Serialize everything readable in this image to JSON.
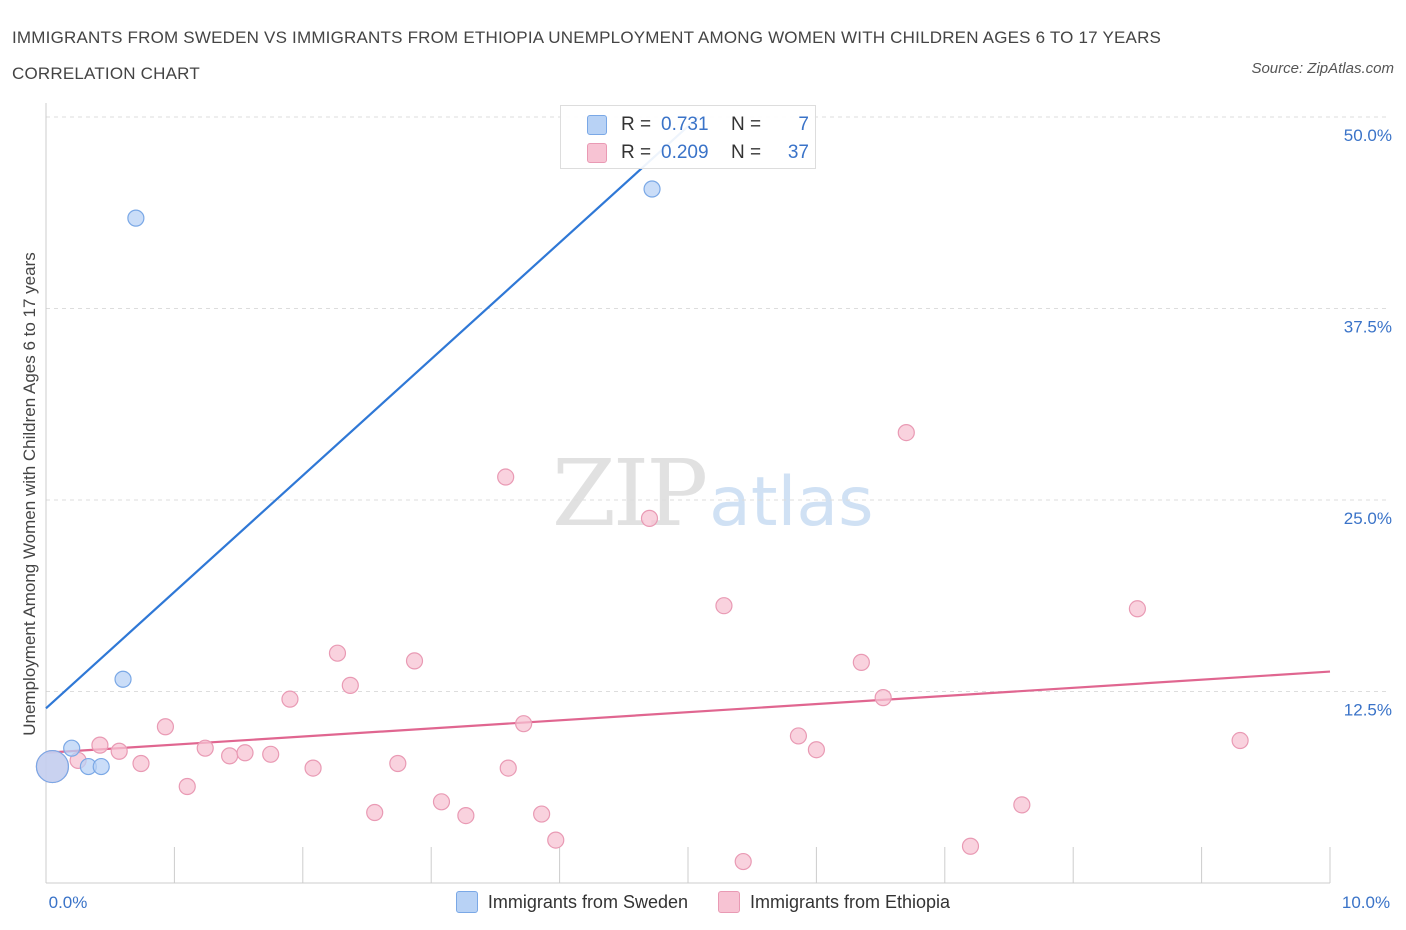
{
  "title": "IMMIGRANTS FROM SWEDEN VS IMMIGRANTS FROM ETHIOPIA UNEMPLOYMENT AMONG WOMEN WITH CHILDREN AGES 6 TO 17 YEARS CORRELATION CHART",
  "source": "Source: ZipAtlas.com",
  "watermark": {
    "zip": "ZIP",
    "atlas": "atlas"
  },
  "stats": [
    {
      "r_label": "R =",
      "r_value": "0.731",
      "n_label": "N =",
      "n_value": "7"
    },
    {
      "r_label": "R =",
      "r_value": "0.209",
      "n_label": "N =",
      "n_value": "37"
    }
  ],
  "legend": [
    {
      "label": "Immigrants from Sweden"
    },
    {
      "label": "Immigrants from Ethiopia"
    }
  ],
  "colors": {
    "sweden_fill": "#b8d2f5",
    "sweden_stroke": "#7aa8e6",
    "sweden_line": "#2f78d6",
    "ethiopia_fill": "#f7c3d3",
    "ethiopia_stroke": "#e99ab4",
    "ethiopia_line": "#e06690",
    "grid": "#dddddd",
    "axis_label": "#3a73c8"
  },
  "chart_data": {
    "type": "scatter",
    "xlabel": "",
    "ylabel": "Unemployment Among Women with Children Ages 6 to 17 years",
    "xlim": [
      0,
      10
    ],
    "ylim": [
      0,
      50
    ],
    "x_tick_labels": [
      "0.0%",
      "10.0%"
    ],
    "y_ticks": [
      12.5,
      25.0,
      37.5,
      50.0
    ],
    "y_tick_labels": [
      "12.5%",
      "25.0%",
      "37.5%",
      "50.0%"
    ],
    "series": [
      {
        "name": "Immigrants from Sweden",
        "points": [
          {
            "x": 0.05,
            "y": 7.6,
            "big": true
          },
          {
            "x": 0.2,
            "y": 8.8
          },
          {
            "x": 0.33,
            "y": 7.6
          },
          {
            "x": 0.43,
            "y": 7.6
          },
          {
            "x": 0.6,
            "y": 13.3
          },
          {
            "x": 0.7,
            "y": 43.4
          },
          {
            "x": 4.72,
            "y": 45.3
          }
        ],
        "trend": {
          "x0": 0.0,
          "y0": 11.4,
          "x1": 5.08,
          "y1": 50.0
        }
      },
      {
        "name": "Immigrants from Ethiopia",
        "points": [
          {
            "x": 0.05,
            "y": 7.6,
            "big": true
          },
          {
            "x": 0.25,
            "y": 8.0
          },
          {
            "x": 0.42,
            "y": 9.0
          },
          {
            "x": 0.57,
            "y": 8.6
          },
          {
            "x": 0.74,
            "y": 7.8
          },
          {
            "x": 0.93,
            "y": 10.2
          },
          {
            "x": 1.1,
            "y": 6.3
          },
          {
            "x": 1.24,
            "y": 8.8
          },
          {
            "x": 1.43,
            "y": 8.3
          },
          {
            "x": 1.55,
            "y": 8.5
          },
          {
            "x": 1.75,
            "y": 8.4
          },
          {
            "x": 1.9,
            "y": 12.0
          },
          {
            "x": 2.08,
            "y": 7.5
          },
          {
            "x": 2.27,
            "y": 15.0
          },
          {
            "x": 2.37,
            "y": 12.9
          },
          {
            "x": 2.56,
            "y": 4.6
          },
          {
            "x": 2.74,
            "y": 7.8
          },
          {
            "x": 2.87,
            "y": 14.5
          },
          {
            "x": 3.08,
            "y": 5.3
          },
          {
            "x": 3.27,
            "y": 4.4
          },
          {
            "x": 3.58,
            "y": 26.5
          },
          {
            "x": 3.6,
            "y": 7.5
          },
          {
            "x": 3.72,
            "y": 10.4
          },
          {
            "x": 3.86,
            "y": 4.5
          },
          {
            "x": 3.97,
            "y": 2.8
          },
          {
            "x": 4.7,
            "y": 23.8
          },
          {
            "x": 5.28,
            "y": 18.1
          },
          {
            "x": 5.43,
            "y": 1.4
          },
          {
            "x": 5.86,
            "y": 9.6
          },
          {
            "x": 6.0,
            "y": 8.7
          },
          {
            "x": 6.35,
            "y": 14.4
          },
          {
            "x": 6.52,
            "y": 12.1
          },
          {
            "x": 6.7,
            "y": 29.4
          },
          {
            "x": 7.2,
            "y": 2.4
          },
          {
            "x": 7.6,
            "y": 5.1
          },
          {
            "x": 8.5,
            "y": 17.9
          },
          {
            "x": 9.3,
            "y": 9.3
          }
        ],
        "trend": {
          "x0": 0.0,
          "y0": 8.5,
          "x1": 10.0,
          "y1": 13.8
        }
      }
    ]
  }
}
